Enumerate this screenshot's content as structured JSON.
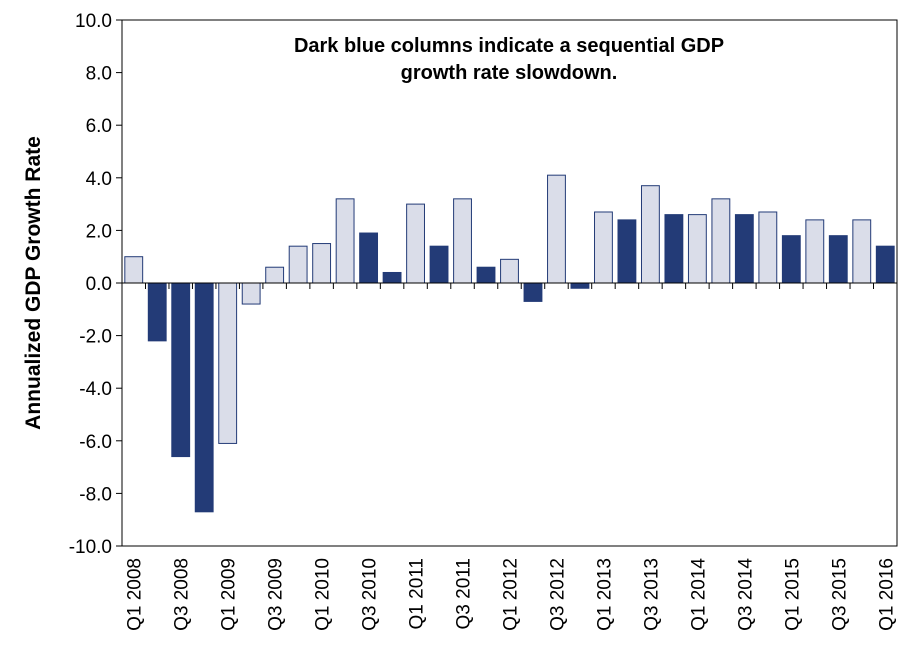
{
  "chart_data": {
    "type": "bar",
    "title": "",
    "xlabel": "",
    "ylabel": "Annualized GDP Growth Rate",
    "ylim": [
      -10,
      10
    ],
    "yticks": [
      "10.0",
      "8.0",
      "6.0",
      "4.0",
      "2.0",
      "0.0",
      "-2.0",
      "-4.0",
      "-6.0",
      "-8.0",
      "-10.0"
    ],
    "grid": false,
    "annotation": [
      "Dark blue columns indicate a sequential GDP",
      "growth rate slowdown."
    ],
    "categories": [
      "Q1 2008",
      "Q2 2008",
      "Q3 2008",
      "Q4 2008",
      "Q1 2009",
      "Q2 2009",
      "Q3 2009",
      "Q4 2009",
      "Q1 2010",
      "Q2 2010",
      "Q3 2010",
      "Q4 2010",
      "Q1 2011",
      "Q2 2011",
      "Q3 2011",
      "Q4 2011",
      "Q1 2012",
      "Q2 2012",
      "Q3 2012",
      "Q4 2012",
      "Q1 2013",
      "Q2 2013",
      "Q3 2013",
      "Q4 2013",
      "Q1 2014",
      "Q2 2014",
      "Q3 2014",
      "Q4 2014",
      "Q1 2015",
      "Q2 2015",
      "Q3 2015",
      "Q4 2015",
      "Q1 2016"
    ],
    "tick_labels_shown": [
      "Q1 2008",
      "Q3 2008",
      "Q1 2009",
      "Q3 2009",
      "Q1 2010",
      "Q3 2010",
      "Q1 2011",
      "Q3 2011",
      "Q1 2012",
      "Q3 2012",
      "Q1 2013",
      "Q3 2013",
      "Q1 2014",
      "Q3 2014",
      "Q1 2015",
      "Q3 2015",
      "Q1 2016"
    ],
    "values": [
      1.0,
      -2.2,
      -6.6,
      -8.7,
      -6.1,
      -0.8,
      0.6,
      1.4,
      1.5,
      3.2,
      1.9,
      0.4,
      3.0,
      1.4,
      3.2,
      0.6,
      0.9,
      -0.7,
      4.1,
      -0.2,
      2.7,
      2.4,
      3.7,
      2.6,
      2.6,
      3.2,
      2.6,
      2.7,
      1.8,
      2.4,
      1.8,
      2.4,
      1.4
    ],
    "slowdown": [
      false,
      true,
      true,
      true,
      false,
      false,
      false,
      false,
      false,
      false,
      true,
      true,
      false,
      true,
      false,
      true,
      false,
      true,
      false,
      true,
      false,
      true,
      false,
      true,
      false,
      false,
      true,
      false,
      true,
      false,
      true,
      false,
      true
    ],
    "colors": {
      "normal_fill": "#dadde9",
      "slowdown_fill": "#233b77",
      "bar_stroke": "#233b77",
      "axis": "#000000"
    }
  }
}
